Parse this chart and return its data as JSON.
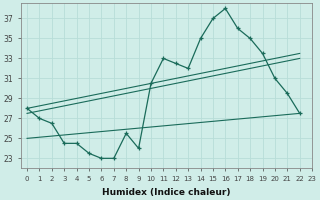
{
  "background_color": "#d0ede8",
  "grid_color": "#b8ddd8",
  "line_color": "#1a6b5a",
  "xlabel": "Humidex (Indice chaleur)",
  "xlim": [
    -0.5,
    23
  ],
  "ylim": [
    22,
    38.5
  ],
  "yticks": [
    23,
    25,
    27,
    29,
    31,
    33,
    35,
    37
  ],
  "xticks": [
    0,
    1,
    2,
    3,
    4,
    5,
    6,
    7,
    8,
    9,
    10,
    11,
    12,
    13,
    14,
    15,
    16,
    17,
    18,
    19,
    20,
    21,
    22,
    23
  ],
  "line1_x": [
    0,
    1,
    2,
    3,
    4,
    5,
    6,
    7,
    8,
    9,
    10,
    11,
    12,
    13,
    14,
    15,
    16,
    17,
    18,
    19,
    20,
    21,
    22
  ],
  "line1_y": [
    28.0,
    27.0,
    26.5,
    24.5,
    24.5,
    23.5,
    23.0,
    23.0,
    25.5,
    24.0,
    30.5,
    33.0,
    32.5,
    32.0,
    35.0,
    37.0,
    38.0,
    36.0,
    35.0,
    33.5,
    31.0,
    29.5,
    27.5
  ],
  "line2_x": [
    0,
    22
  ],
  "line2_y": [
    28.0,
    33.5
  ],
  "line3_x": [
    0,
    22
  ],
  "line3_y": [
    27.5,
    33.0
  ],
  "line4_x": [
    0,
    22
  ],
  "line4_y": [
    25.0,
    27.5
  ]
}
